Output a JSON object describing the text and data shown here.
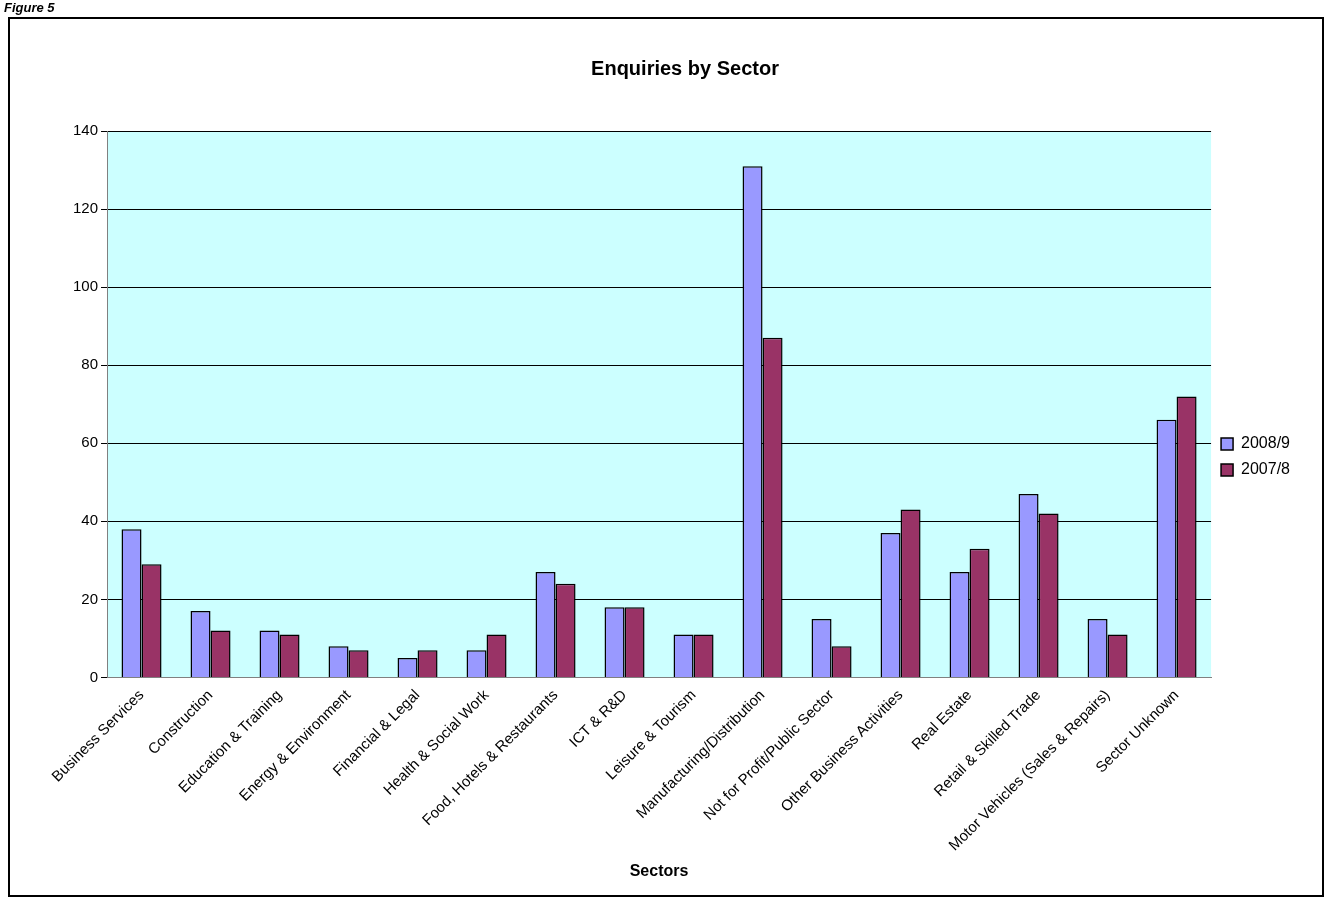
{
  "chart_data": {
    "type": "bar",
    "title": "Enquiries by Sector",
    "xlabel": "Sectors",
    "annotations": [
      "Figure 5"
    ],
    "categories": [
      "Business Services",
      "Construction",
      "Education & Training",
      "Energy & Environment",
      "Financial & Legal",
      "Health & Social Work",
      "Food, Hotels & Restaurants",
      "ICT & R&D",
      "Leisure & Tourism",
      "Manufacturing/Distribution",
      "Not for Profit/Public Sector",
      "Other Business Activities",
      "Real Estate",
      "Retail & Skilled Trade",
      "Motor Vehicles (Sales & Repairs)",
      "Sector Unknown"
    ],
    "series": [
      {
        "name": "2008/9",
        "color": "#9999ff",
        "values": [
          38,
          17,
          12,
          8,
          5,
          7,
          27,
          18,
          11,
          131,
          15,
          37,
          27,
          47,
          15,
          66
        ]
      },
      {
        "name": "2007/8",
        "color": "#993366",
        "values": [
          29,
          12,
          11,
          7,
          7,
          11,
          24,
          18,
          11,
          87,
          8,
          43,
          33,
          42,
          11,
          72
        ]
      }
    ],
    "ylim": [
      0,
      140
    ],
    "yticks": [
      0,
      20,
      40,
      60,
      80,
      100,
      120,
      140
    ],
    "grid": "y",
    "legend": "right"
  }
}
